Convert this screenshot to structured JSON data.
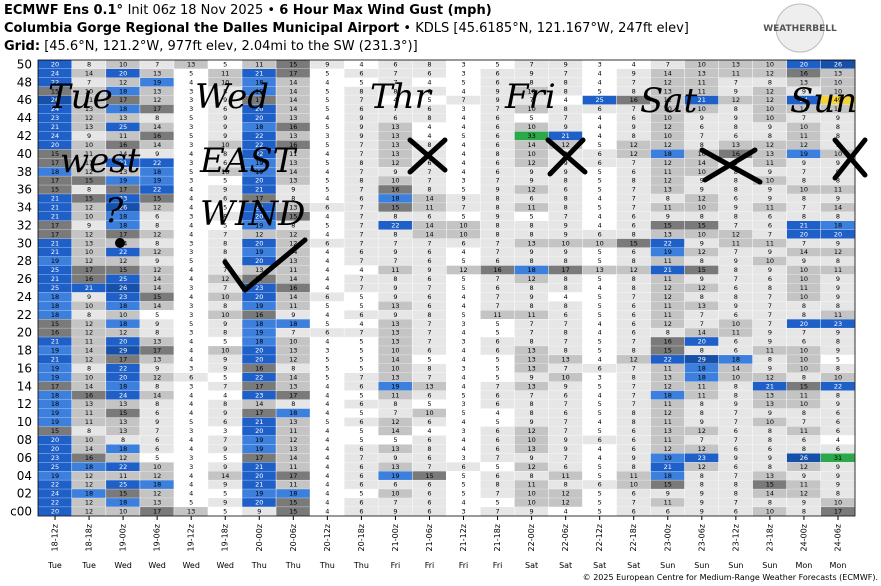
{
  "chart_data": {
    "type": "heatmap",
    "model": "ECMWF Ens 0.1° ",
    "init": "Init 06z 18 Nov 2025 •",
    "title": "6 Hour Max Wind Gust (mph)",
    "location": "Columbia Gorge Regional the Dalles Municipal Airport",
    "station": "• KDLS [45.6185°N, 121.167°W, 247ft elev]",
    "grid_label": "Grid:",
    "grid_info": "[45.6°N, 121.2°W, 977ft elev, 2.04mi to the SW (231.3°)]",
    "logo": "WEATHERBELL",
    "footer": "© 2025 European Centre for Medium-Range Weather Forecasts (ECMWF).",
    "x": [
      "18-12z",
      "18-18z",
      "19-00z",
      "19-06z",
      "19-12z",
      "19-18z",
      "20-00z",
      "20-06z",
      "20-12z",
      "20-18z",
      "21-00z",
      "21-06z",
      "21-12z",
      "21-18z",
      "22-00z",
      "22-06z",
      "22-12z",
      "22-18z",
      "23-00z",
      "23-06z",
      "23-12z",
      "23-18z",
      "24-00z",
      "24-06z"
    ],
    "days": [
      "Tue",
      "Tue",
      "Wed",
      "Wed",
      "Wed",
      "Wed",
      "Thu",
      "Thu",
      "Thu",
      "Thu",
      "Fri",
      "Fri",
      "Fri",
      "Fri",
      "Sat",
      "Sat",
      "Sat",
      "Sat",
      "Sun",
      "Sun",
      "Sun",
      "Sun",
      "Mon",
      "Mon"
    ],
    "y": [
      "c00",
      "01",
      "02",
      "03",
      "04",
      "05",
      "06",
      "07",
      "08",
      "09",
      "10",
      "11",
      "12",
      "13",
      "14",
      "15",
      "16",
      "17",
      "18",
      "19",
      "20",
      "21",
      "22",
      "23",
      "24",
      "25",
      "26",
      "27",
      "28",
      "29",
      "30",
      "31",
      "32",
      "33",
      "34",
      "35",
      "36",
      "37",
      "38",
      "39",
      "40",
      "41",
      "42",
      "43",
      "44",
      "45",
      "46",
      "47",
      "48",
      "49",
      "50"
    ],
    "y_labels_every": 2,
    "color_scale": [
      {
        "min": 0,
        "color": "#ffffff",
        "text": "#000000"
      },
      {
        "min": 6,
        "color": "#e6e6e6",
        "text": "#000000"
      },
      {
        "min": 10,
        "color": "#c4c4c4",
        "text": "#000000"
      },
      {
        "min": 15,
        "color": "#7a7a7a",
        "text": "#000000"
      },
      {
        "min": 18,
        "color": "#3d7fdc",
        "text": "#000000"
      },
      {
        "min": 20,
        "color": "#1f5fc8",
        "text": "#ffffff"
      },
      {
        "min": 26,
        "color": "#1750a8",
        "text": "#ffffff"
      },
      {
        "min": 30,
        "color": "#2aa84a",
        "text": "#000000"
      },
      {
        "min": 40,
        "color": "#f4d23c",
        "text": "#000000"
      }
    ],
    "values": [
      [
        20,
        12,
        10,
        17,
        13,
        5,
        9,
        15,
        4,
        6,
        9,
        6,
        3,
        7,
        9,
        4,
        5,
        6,
        6,
        9,
        6,
        10,
        8,
        17
      ],
      [
        22,
        12,
        18,
        13,
        5,
        9,
        20,
        15,
        4,
        6,
        7,
        6,
        4,
        5,
        10,
        12,
        5,
        7,
        11,
        9,
        7,
        8,
        9,
        10
      ],
      [
        24,
        18,
        15,
        12,
        4,
        5,
        19,
        18,
        4,
        5,
        10,
        6,
        5,
        7,
        10,
        12,
        5,
        6,
        9,
        9,
        8,
        14,
        12,
        8
      ],
      [
        22,
        12,
        25,
        18,
        4,
        9,
        21,
        11,
        4,
        6,
        6,
        6,
        5,
        8,
        11,
        8,
        6,
        10,
        15,
        8,
        8,
        15,
        11,
        9
      ],
      [
        19,
        12,
        11,
        12,
        4,
        14,
        20,
        17,
        4,
        6,
        19,
        15,
        5,
        6,
        8,
        11,
        5,
        11,
        18,
        8,
        7,
        13,
        9,
        9
      ],
      [
        25,
        18,
        22,
        10,
        3,
        9,
        21,
        11,
        4,
        6,
        13,
        7,
        6,
        5,
        12,
        6,
        5,
        8,
        21,
        12,
        6,
        8,
        12,
        9
      ],
      [
        23,
        16,
        12,
        5,
        3,
        5,
        17,
        14,
        4,
        7,
        9,
        6,
        3,
        7,
        9,
        7,
        4,
        9,
        19,
        23,
        9,
        9,
        26,
        31
      ],
      [
        20,
        14,
        18,
        6,
        4,
        9,
        19,
        13,
        4,
        6,
        13,
        8,
        4,
        6,
        13,
        9,
        4,
        6,
        12,
        12,
        6,
        6,
        8,
        6
      ],
      [
        20,
        10,
        8,
        6,
        4,
        7,
        19,
        12,
        4,
        5,
        5,
        6,
        4,
        6,
        10,
        9,
        6,
        6,
        11,
        7,
        7,
        8,
        6,
        4
      ],
      [
        15,
        8,
        13,
        7,
        3,
        3,
        20,
        11,
        4,
        5,
        14,
        4,
        3,
        6,
        12,
        7,
        5,
        6,
        13,
        12,
        6,
        8,
        11,
        6
      ],
      [
        19,
        11,
        13,
        9,
        5,
        6,
        21,
        13,
        5,
        6,
        12,
        6,
        4,
        5,
        9,
        7,
        4,
        8,
        11,
        9,
        7,
        10,
        7,
        6
      ],
      [
        19,
        11,
        15,
        6,
        4,
        9,
        17,
        18,
        4,
        5,
        7,
        10,
        5,
        4,
        8,
        6,
        5,
        8,
        12,
        8,
        7,
        9,
        8,
        6
      ],
      [
        18,
        13,
        13,
        8,
        4,
        8,
        14,
        8,
        4,
        6,
        8,
        5,
        3,
        6,
        8,
        7,
        5,
        7,
        11,
        8,
        9,
        13,
        10,
        9
      ],
      [
        18,
        16,
        24,
        14,
        4,
        4,
        23,
        17,
        4,
        5,
        11,
        6,
        5,
        6,
        7,
        6,
        4,
        7,
        18,
        11,
        8,
        13,
        11,
        8
      ],
      [
        17,
        14,
        18,
        8,
        3,
        7,
        17,
        13,
        4,
        6,
        19,
        13,
        4,
        7,
        13,
        9,
        5,
        7,
        12,
        11,
        8,
        21,
        15,
        22
      ],
      [
        19,
        10,
        20,
        12,
        6,
        5,
        22,
        14,
        5,
        7,
        13,
        7,
        4,
        5,
        9,
        10,
        3,
        8,
        13,
        18,
        10,
        12,
        8,
        10
      ],
      [
        19,
        8,
        22,
        9,
        3,
        9,
        16,
        8,
        5,
        5,
        10,
        8,
        3,
        5,
        13,
        7,
        6,
        7,
        11,
        18,
        14,
        9,
        10,
        8
      ],
      [
        21,
        12,
        17,
        13,
        4,
        9,
        20,
        12,
        5,
        5,
        14,
        5,
        4,
        5,
        13,
        13,
        4,
        12,
        22,
        29,
        18,
        8,
        10,
        5
      ],
      [
        19,
        14,
        29,
        17,
        4,
        10,
        20,
        13,
        3,
        5,
        10,
        6,
        4,
        6,
        13,
        8,
        5,
        8,
        15,
        8,
        6,
        11,
        10,
        9
      ],
      [
        21,
        11,
        20,
        13,
        4,
        5,
        18,
        10,
        4,
        5,
        13,
        7,
        3,
        6,
        8,
        7,
        5,
        7,
        16,
        20,
        6,
        9,
        6,
        8
      ],
      [
        16,
        12,
        12,
        8,
        3,
        8,
        19,
        7,
        6,
        7,
        13,
        7,
        4,
        5,
        7,
        8,
        4,
        6,
        8,
        14,
        11,
        9,
        7,
        9
      ],
      [
        15,
        12,
        18,
        9,
        5,
        9,
        18,
        18,
        5,
        4,
        13,
        7,
        3,
        5,
        7,
        7,
        4,
        6,
        12,
        7,
        10,
        7,
        20,
        23
      ],
      [
        18,
        8,
        10,
        5,
        3,
        10,
        16,
        9,
        4,
        6,
        9,
        8,
        5,
        11,
        11,
        6,
        5,
        6,
        11,
        7,
        6,
        7,
        8,
        11
      ],
      [
        18,
        10,
        18,
        14,
        3,
        8,
        19,
        11,
        5,
        5,
        13,
        6,
        4,
        7,
        8,
        8,
        5,
        6,
        11,
        13,
        9,
        7,
        8,
        8
      ],
      [
        18,
        9,
        23,
        15,
        4,
        10,
        20,
        14,
        6,
        5,
        9,
        6,
        4,
        7,
        9,
        4,
        5,
        7,
        12,
        8,
        8,
        7,
        10,
        9
      ],
      [
        25,
        21,
        26,
        14,
        3,
        7,
        23,
        16,
        4,
        7,
        9,
        7,
        5,
        6,
        8,
        8,
        4,
        8,
        12,
        12,
        6,
        8,
        11,
        9
      ],
      [
        21,
        16,
        25,
        14,
        4,
        12,
        17,
        14,
        4,
        7,
        8,
        6,
        5,
        7,
        12,
        8,
        5,
        8,
        11,
        9,
        7,
        6,
        10,
        9
      ],
      [
        25,
        17,
        15,
        12,
        4,
        7,
        13,
        11,
        4,
        4,
        11,
        9,
        12,
        16,
        18,
        17,
        13,
        12,
        21,
        15,
        8,
        9,
        10,
        11
      ],
      [
        19,
        12,
        12,
        9,
        5,
        9,
        20,
        13,
        4,
        7,
        7,
        6,
        5,
        6,
        8,
        8,
        5,
        8,
        11,
        8,
        9,
        10,
        9,
        8
      ],
      [
        21,
        10,
        22,
        12,
        3,
        8,
        19,
        14,
        4,
        6,
        9,
        6,
        4,
        7,
        9,
        9,
        5,
        6,
        19,
        12,
        7,
        9,
        14,
        12
      ],
      [
        21,
        13,
        14,
        8,
        3,
        8,
        20,
        12,
        6,
        7,
        7,
        7,
        6,
        7,
        13,
        10,
        10,
        15,
        22,
        9,
        11,
        11,
        7,
        9
      ],
      [
        17,
        12,
        17,
        12,
        4,
        7,
        12,
        12,
        4,
        7,
        8,
        14,
        10,
        8,
        8,
        9,
        6,
        8,
        13,
        10,
        12,
        7,
        20,
        20
      ],
      [
        17,
        9,
        18,
        8,
        4,
        5,
        19,
        8,
        5,
        7,
        22,
        14,
        10,
        8,
        8,
        9,
        4,
        6,
        15,
        15,
        7,
        6,
        21,
        18
      ],
      [
        21,
        10,
        18,
        6,
        3,
        8,
        20,
        15,
        4,
        7,
        8,
        6,
        5,
        9,
        5,
        7,
        4,
        6,
        9,
        8,
        8,
        6,
        8,
        8
      ],
      [
        21,
        12,
        26,
        12,
        4,
        5,
        20,
        13,
        6,
        7,
        15,
        11,
        7,
        8,
        11,
        8,
        5,
        7,
        11,
        10,
        9,
        11,
        7,
        14
      ],
      [
        21,
        15,
        23,
        15,
        4,
        6,
        17,
        8,
        4,
        6,
        18,
        14,
        9,
        8,
        6,
        8,
        4,
        7,
        8,
        12,
        6,
        9,
        8,
        9
      ],
      [
        15,
        8,
        17,
        22,
        4,
        9,
        21,
        9,
        5,
        7,
        16,
        8,
        5,
        9,
        12,
        6,
        5,
        7,
        13,
        9,
        8,
        9,
        10,
        11
      ],
      [
        17,
        15,
        19,
        19,
        3,
        5,
        20,
        13,
        5,
        8,
        10,
        7,
        3,
        7,
        9,
        8,
        5,
        8,
        12,
        9,
        8,
        10,
        8,
        8
      ],
      [
        18,
        12,
        13,
        18,
        5,
        10,
        19,
        14,
        4,
        7,
        9,
        7,
        4,
        6,
        9,
        9,
        5,
        6,
        11,
        10,
        8,
        9,
        7,
        9
      ],
      [
        17,
        11,
        21,
        22,
        3,
        6,
        19,
        13,
        5,
        8,
        12,
        6,
        4,
        6,
        12,
        9,
        6,
        7,
        12,
        14,
        9,
        11,
        9,
        9
      ],
      [
        15,
        11,
        14,
        9,
        4,
        8,
        22,
        11,
        4,
        7,
        13,
        6,
        4,
        8,
        10,
        9,
        6,
        12,
        18,
        10,
        16,
        13,
        19,
        10
      ],
      [
        20,
        10,
        16,
        14,
        3,
        10,
        22,
        16,
        5,
        7,
        13,
        8,
        4,
        6,
        14,
        12,
        5,
        12,
        12,
        8,
        13,
        12,
        12,
        9
      ],
      [
        24,
        9,
        11,
        16,
        5,
        9,
        22,
        13,
        3,
        9,
        13,
        4,
        5,
        6,
        33,
        21,
        4,
        8,
        10,
        7,
        6,
        8,
        11,
        8
      ],
      [
        21,
        13,
        25,
        14,
        3,
        9,
        18,
        16,
        5,
        9,
        13,
        4,
        4,
        6,
        10,
        9,
        4,
        9,
        12,
        6,
        8,
        9,
        10,
        8
      ],
      [
        23,
        12,
        13,
        8,
        5,
        9,
        20,
        13,
        4,
        9,
        6,
        8,
        4,
        6,
        5,
        7,
        4,
        6,
        10,
        9,
        9,
        10,
        7,
        9
      ],
      [
        24,
        13,
        18,
        17,
        3,
        6,
        20,
        14,
        5,
        6,
        7,
        6,
        3,
        7,
        10,
        8,
        6,
        7,
        10,
        10,
        8,
        10,
        14,
        14
      ],
      [
        26,
        11,
        17,
        12,
        3,
        9,
        17,
        14,
        5,
        7,
        4,
        5,
        7,
        9,
        7,
        4,
        25,
        16,
        12,
        21,
        12,
        12,
        24,
        49
      ],
      [
        15,
        10,
        18,
        13,
        3,
        8,
        19,
        14,
        5,
        8,
        8,
        6,
        4,
        9,
        10,
        8,
        5,
        8,
        13,
        11,
        9,
        12,
        9,
        10
      ],
      [
        22,
        7,
        12,
        19,
        4,
        10,
        18,
        14,
        4,
        5,
        7,
        4,
        5,
        6,
        8,
        8,
        4,
        7,
        12,
        11,
        7,
        8,
        13,
        10
      ],
      [
        24,
        14,
        20,
        13,
        5,
        11,
        21,
        17,
        5,
        6,
        7,
        6,
        3,
        6,
        9,
        7,
        4,
        9,
        14,
        13,
        11,
        12,
        16,
        13
      ],
      [
        20,
        8,
        10,
        7,
        13,
        5,
        11,
        15,
        9,
        4,
        6,
        8,
        3,
        5,
        7,
        9,
        3,
        4,
        7,
        10,
        13,
        10,
        20,
        26
      ]
    ],
    "annotations": [
      "Tue",
      "Wed",
      "Thr",
      "Fri",
      "Sat",
      "Sun",
      "west",
      "EAST",
      "?",
      "WIND"
    ]
  }
}
